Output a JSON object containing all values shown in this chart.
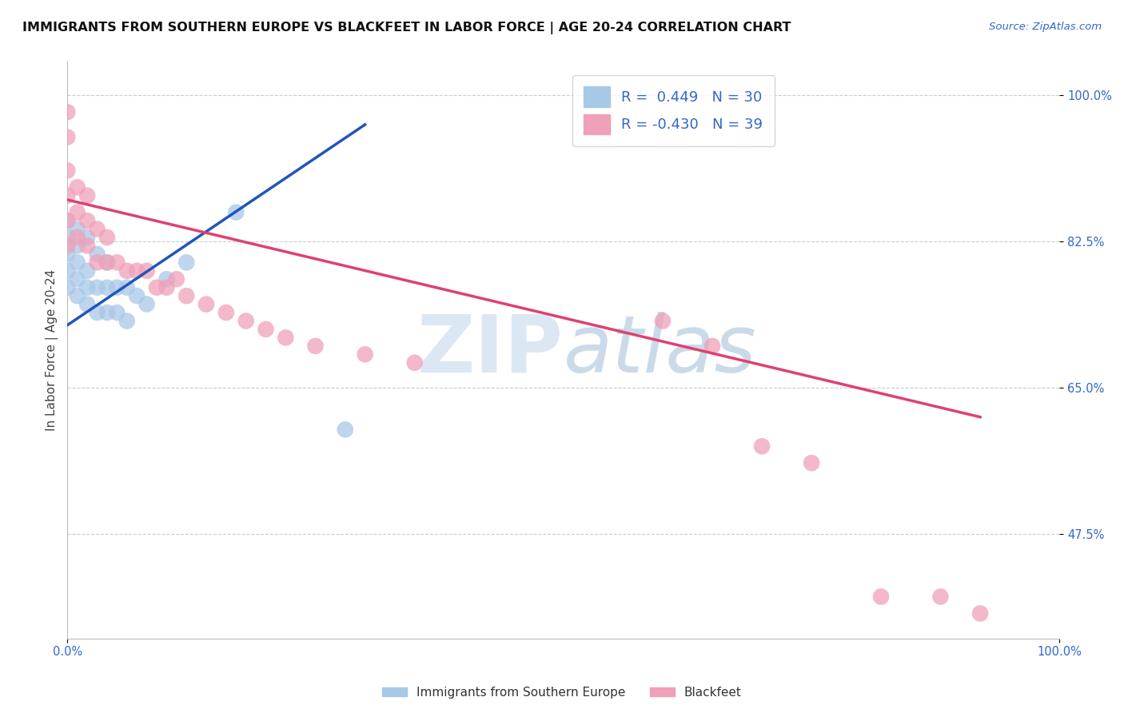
{
  "title": "IMMIGRANTS FROM SOUTHERN EUROPE VS BLACKFEET IN LABOR FORCE | AGE 20-24 CORRELATION CHART",
  "source": "Source: ZipAtlas.com",
  "ylabel": "In Labor Force | Age 20-24",
  "xlim": [
    0.0,
    1.0
  ],
  "ylim": [
    0.35,
    1.04
  ],
  "yticks": [
    0.475,
    0.65,
    0.825,
    1.0
  ],
  "ytick_labels": [
    "47.5%",
    "65.0%",
    "82.5%",
    "100.0%"
  ],
  "xtick_labels": [
    "0.0%",
    "100.0%"
  ],
  "legend_entry1": "R =  0.449   N = 30",
  "legend_entry2": "R = -0.430   N = 39",
  "legend_label1": "Immigrants from Southern Europe",
  "legend_label2": "Blackfeet",
  "blue_color": "#A8C8E8",
  "pink_color": "#F0A0B8",
  "blue_line_color": "#2255BB",
  "pink_line_color": "#E04070",
  "blue_scatter_x": [
    0.0,
    0.0,
    0.0,
    0.0,
    0.0,
    0.01,
    0.01,
    0.01,
    0.01,
    0.01,
    0.02,
    0.02,
    0.02,
    0.02,
    0.03,
    0.03,
    0.03,
    0.04,
    0.04,
    0.04,
    0.05,
    0.05,
    0.06,
    0.06,
    0.07,
    0.08,
    0.1,
    0.12,
    0.17,
    0.28
  ],
  "blue_scatter_y": [
    0.77,
    0.79,
    0.81,
    0.83,
    0.85,
    0.76,
    0.78,
    0.8,
    0.82,
    0.84,
    0.75,
    0.77,
    0.79,
    0.83,
    0.74,
    0.77,
    0.81,
    0.74,
    0.77,
    0.8,
    0.74,
    0.77,
    0.73,
    0.77,
    0.76,
    0.75,
    0.78,
    0.8,
    0.86,
    0.6
  ],
  "pink_scatter_x": [
    0.0,
    0.0,
    0.0,
    0.0,
    0.0,
    0.0,
    0.01,
    0.01,
    0.01,
    0.02,
    0.02,
    0.02,
    0.03,
    0.03,
    0.04,
    0.04,
    0.05,
    0.06,
    0.07,
    0.08,
    0.09,
    0.1,
    0.11,
    0.12,
    0.14,
    0.16,
    0.18,
    0.2,
    0.22,
    0.25,
    0.3,
    0.35,
    0.6,
    0.65,
    0.7,
    0.75,
    0.82,
    0.88,
    0.92
  ],
  "pink_scatter_y": [
    0.82,
    0.85,
    0.88,
    0.91,
    0.95,
    0.98,
    0.83,
    0.86,
    0.89,
    0.82,
    0.85,
    0.88,
    0.8,
    0.84,
    0.8,
    0.83,
    0.8,
    0.79,
    0.79,
    0.79,
    0.77,
    0.77,
    0.78,
    0.76,
    0.75,
    0.74,
    0.73,
    0.72,
    0.71,
    0.7,
    0.69,
    0.68,
    0.73,
    0.7,
    0.58,
    0.56,
    0.4,
    0.4,
    0.38
  ],
  "blue_line_x": [
    0.0,
    0.3
  ],
  "blue_line_y": [
    0.725,
    0.965
  ],
  "pink_line_x": [
    0.0,
    0.92
  ],
  "pink_line_y": [
    0.875,
    0.615
  ],
  "watermark_zip": "ZIP",
  "watermark_atlas": "atlas",
  "background_color": "#FFFFFF",
  "grid_color": "#CCCCCC",
  "title_fontsize": 11.5,
  "axis_label_fontsize": 11,
  "tick_fontsize": 10.5
}
